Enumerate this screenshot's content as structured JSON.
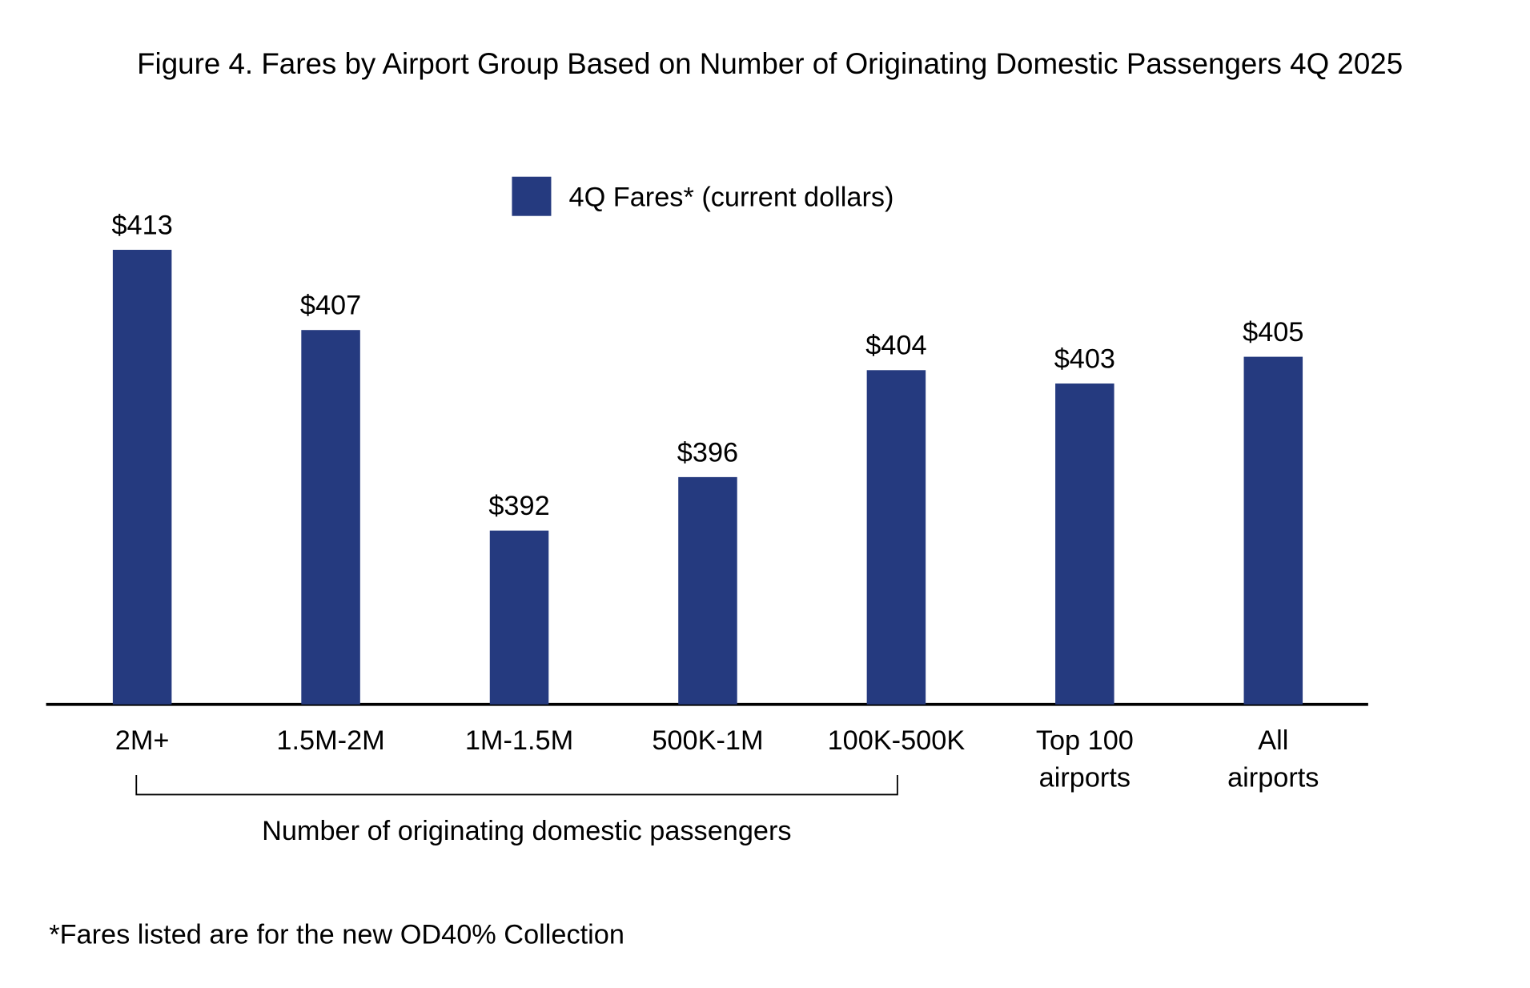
{
  "chart_data": {
    "type": "bar",
    "title": "Figure 4. Fares by Airport Group Based on Number of Originating Domestic Passengers 4Q 2025",
    "categories": [
      "2M+",
      "1.5M-2M",
      "1M-1.5M",
      "500K-1M",
      "100K-500K",
      "Top 100\nairports",
      "All\nairports"
    ],
    "series": [
      {
        "name": "4Q Fares* (current dollars)",
        "color": "#253a7f",
        "values": [
          413,
          407,
          392,
          396,
          404,
          403,
          405
        ],
        "value_labels": [
          "$413",
          "$407",
          "$392",
          "$396",
          "$404",
          "$403",
          "$405"
        ]
      }
    ],
    "ylim": [
      379,
      417
    ],
    "group_label": "Number of originating domestic passengers",
    "footnote": "*Fares listed are for the new OD40% Collection"
  }
}
